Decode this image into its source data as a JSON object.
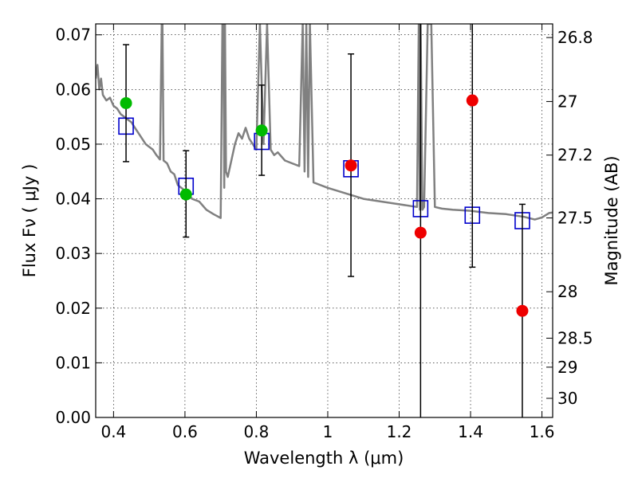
{
  "chart_data": {
    "type": "scatter",
    "xlabel": "Wavelength  λ (μm)",
    "ylabel": "Flux  Fν  ( μJy )",
    "ylabel_right": "Magnitude (AB)",
    "xlim": [
      0.35,
      1.63
    ],
    "ylim": [
      0.0,
      0.072
    ],
    "grid": true,
    "x_ticks": [
      0.4,
      0.6,
      0.8,
      1.0,
      1.2,
      1.4,
      1.6
    ],
    "x_tick_labels": [
      "0.4",
      "0.6",
      "0.8",
      "1",
      "1.2",
      "1.4",
      "1.6"
    ],
    "y_ticks": [
      0.0,
      0.01,
      0.02,
      0.03,
      0.04,
      0.05,
      0.06,
      0.07
    ],
    "y_tick_labels": [
      "0.00",
      "0.01",
      "0.02",
      "0.03",
      "0.04",
      "0.05",
      "0.06",
      "0.07"
    ],
    "right_ticks": [
      {
        "flux": 0.0695,
        "label": "26.8"
      },
      {
        "flux": 0.0578,
        "label": "27"
      },
      {
        "flux": 0.048,
        "label": "27.2"
      },
      {
        "flux": 0.0365,
        "label": "27.5"
      },
      {
        "flux": 0.023,
        "label": "28"
      },
      {
        "flux": 0.0145,
        "label": "28.5"
      },
      {
        "flux": 0.0092,
        "label": "29"
      },
      {
        "flux": 0.0035,
        "label": "30"
      }
    ],
    "colors": {
      "model": "#808080",
      "green": "#00bb00",
      "red": "#ee0000",
      "box": "#0000cc",
      "errorbar": "#000000"
    },
    "series": [
      {
        "kind": "green-points",
        "x": [
          0.435,
          0.603,
          0.815
        ],
        "y": [
          0.0575,
          0.0408,
          0.0525
        ],
        "yerr_low": [
          0.0468,
          0.033,
          0.0443
        ],
        "yerr_high": [
          0.0682,
          0.0488,
          0.0608
        ]
      },
      {
        "kind": "red-points",
        "x": [
          1.065,
          1.26,
          1.405,
          1.545
        ],
        "y": [
          0.0461,
          0.0338,
          0.058,
          0.0195
        ],
        "yerr_low": [
          0.0258,
          0.0,
          0.0275,
          0.0
        ],
        "yerr_high": [
          0.0665,
          0.072,
          0.072,
          0.039
        ]
      },
      {
        "kind": "model-boxes",
        "x": [
          0.435,
          0.603,
          0.815,
          1.065,
          1.26,
          1.405,
          1.545
        ],
        "y": [
          0.0533,
          0.0423,
          0.0505,
          0.0455,
          0.0382,
          0.037,
          0.036
        ]
      }
    ],
    "model_spectrum": {
      "x": [
        0.35,
        0.355,
        0.36,
        0.365,
        0.37,
        0.38,
        0.39,
        0.4,
        0.41,
        0.42,
        0.43,
        0.44,
        0.45,
        0.46,
        0.47,
        0.48,
        0.49,
        0.5,
        0.51,
        0.52,
        0.53,
        0.535,
        0.537,
        0.54,
        0.55,
        0.56,
        0.57,
        0.58,
        0.6,
        0.62,
        0.64,
        0.66,
        0.68,
        0.7,
        0.705,
        0.708,
        0.71,
        0.712,
        0.715,
        0.72,
        0.73,
        0.74,
        0.75,
        0.76,
        0.77,
        0.78,
        0.79,
        0.8,
        0.81,
        0.82,
        0.83,
        0.84,
        0.85,
        0.86,
        0.88,
        0.9,
        0.92,
        0.93,
        0.935,
        0.94,
        0.945,
        0.95,
        0.96,
        1.0,
        1.05,
        1.1,
        1.15,
        1.2,
        1.25,
        1.255,
        1.258,
        1.26,
        1.265,
        1.27,
        1.28,
        1.29,
        1.3,
        1.32,
        1.35,
        1.4,
        1.45,
        1.5,
        1.55,
        1.58,
        1.6,
        1.62,
        1.63
      ],
      "y": [
        0.062,
        0.0645,
        0.06,
        0.062,
        0.059,
        0.058,
        0.0585,
        0.057,
        0.0565,
        0.0555,
        0.055,
        0.0545,
        0.054,
        0.053,
        0.052,
        0.051,
        0.05,
        0.0495,
        0.049,
        0.048,
        0.0472,
        0.072,
        0.072,
        0.047,
        0.0465,
        0.045,
        0.0445,
        0.0425,
        0.0415,
        0.04,
        0.0395,
        0.038,
        0.0372,
        0.0365,
        0.072,
        0.072,
        0.042,
        0.072,
        0.045,
        0.044,
        0.047,
        0.05,
        0.052,
        0.051,
        0.053,
        0.051,
        0.05,
        0.049,
        0.072,
        0.05,
        0.072,
        0.049,
        0.048,
        0.0485,
        0.047,
        0.0465,
        0.046,
        0.072,
        0.045,
        0.072,
        0.044,
        0.072,
        0.043,
        0.042,
        0.041,
        0.04,
        0.0395,
        0.039,
        0.0385,
        0.072,
        0.038,
        0.072,
        0.038,
        0.0385,
        0.072,
        0.072,
        0.0385,
        0.0382,
        0.038,
        0.0378,
        0.0374,
        0.0372,
        0.0367,
        0.0362,
        0.0366,
        0.0374,
        0.0375
      ]
    }
  }
}
